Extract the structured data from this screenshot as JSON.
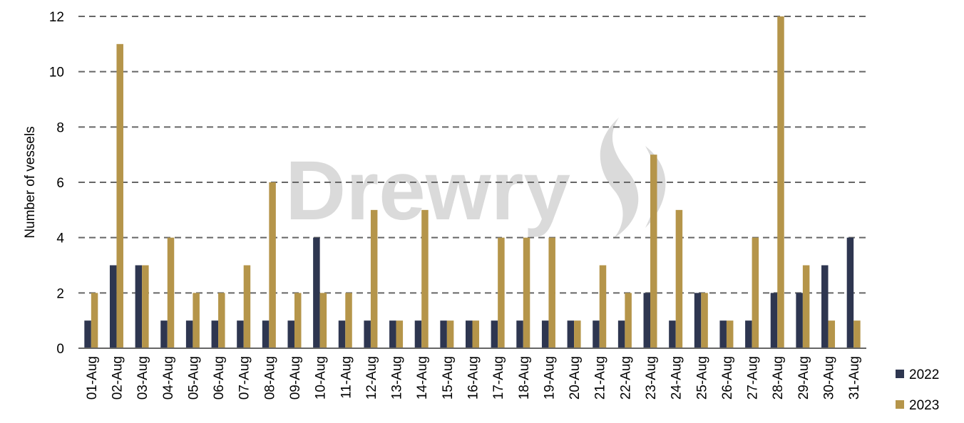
{
  "chart_data": {
    "type": "bar",
    "watermark": "Drewry",
    "y_label": "Number of vessels",
    "categories": [
      "01-Aug",
      "02-Aug",
      "03-Aug",
      "04-Aug",
      "05-Aug",
      "06-Aug",
      "07-Aug",
      "08-Aug",
      "09-Aug",
      "10-Aug",
      "11-Aug",
      "12-Aug",
      "13-Aug",
      "14-Aug",
      "15-Aug",
      "16-Aug",
      "17-Aug",
      "18-Aug",
      "19-Aug",
      "20-Aug",
      "21-Aug",
      "22-Aug",
      "23-Aug",
      "24-Aug",
      "25-Aug",
      "26-Aug",
      "27-Aug",
      "28-Aug",
      "29-Aug",
      "30-Aug",
      "31-Aug"
    ],
    "series": [
      {
        "name": "2022",
        "color": "#2e3650",
        "values": [
          1,
          3,
          3,
          1,
          1,
          1,
          1,
          1,
          1,
          4,
          1,
          1,
          1,
          1,
          1,
          1,
          1,
          1,
          1,
          1,
          1,
          1,
          2,
          1,
          2,
          1,
          1,
          2,
          2,
          3,
          4
        ]
      },
      {
        "name": "2023",
        "color": "#b5954a",
        "values": [
          2,
          11,
          3,
          4,
          2,
          2,
          3,
          6,
          2,
          2,
          2,
          5,
          1,
          5,
          1,
          1,
          4,
          4,
          4,
          1,
          3,
          2,
          7,
          5,
          2,
          1,
          4,
          12,
          3,
          1,
          1
        ]
      }
    ],
    "ylim": [
      0,
      12
    ],
    "yticks": [
      0,
      2,
      4,
      6,
      8,
      10,
      12
    ],
    "grid": true,
    "legend": "bottom-right"
  }
}
